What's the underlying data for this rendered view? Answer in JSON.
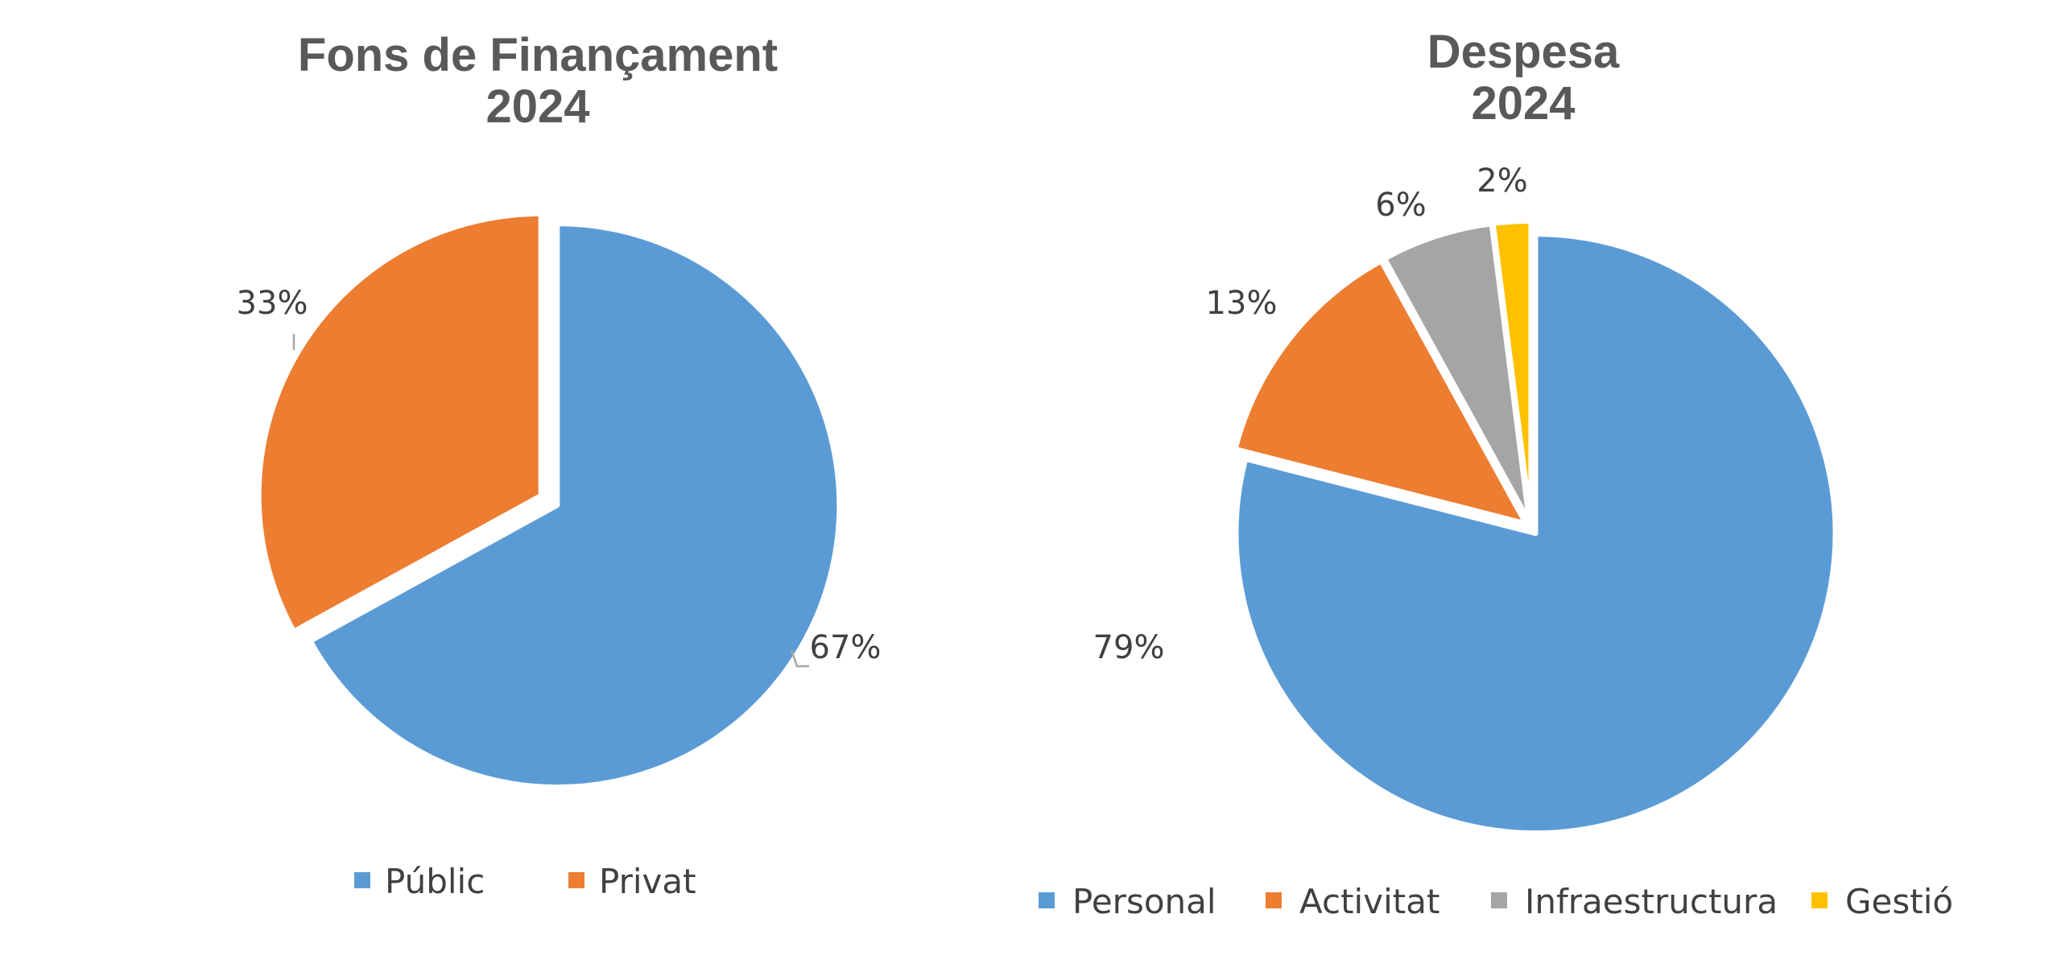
{
  "chart_data": [
    {
      "type": "pie",
      "title": [
        "Fons de Finançament",
        "2024"
      ],
      "labels": [
        "Públic",
        "Privat"
      ],
      "values": [
        67,
        33
      ],
      "data_labels": [
        "67%",
        "33%"
      ],
      "colors": [
        "#5B9BD5",
        "#ED7D31"
      ],
      "legend": "bottom",
      "exploded": true
    },
    {
      "type": "pie",
      "title": [
        "Despesa",
        "2024"
      ],
      "labels": [
        "Personal",
        "Activitat",
        "Infraestructura",
        "Gestió"
      ],
      "values": [
        79,
        13,
        6,
        2
      ],
      "data_labels": [
        "79%",
        "13%",
        "6%",
        "2%"
      ],
      "colors": [
        "#5B9BD5",
        "#ED7D31",
        "#A5A5A5",
        "#FFC000"
      ],
      "legend": "bottom",
      "exploded": true
    }
  ]
}
